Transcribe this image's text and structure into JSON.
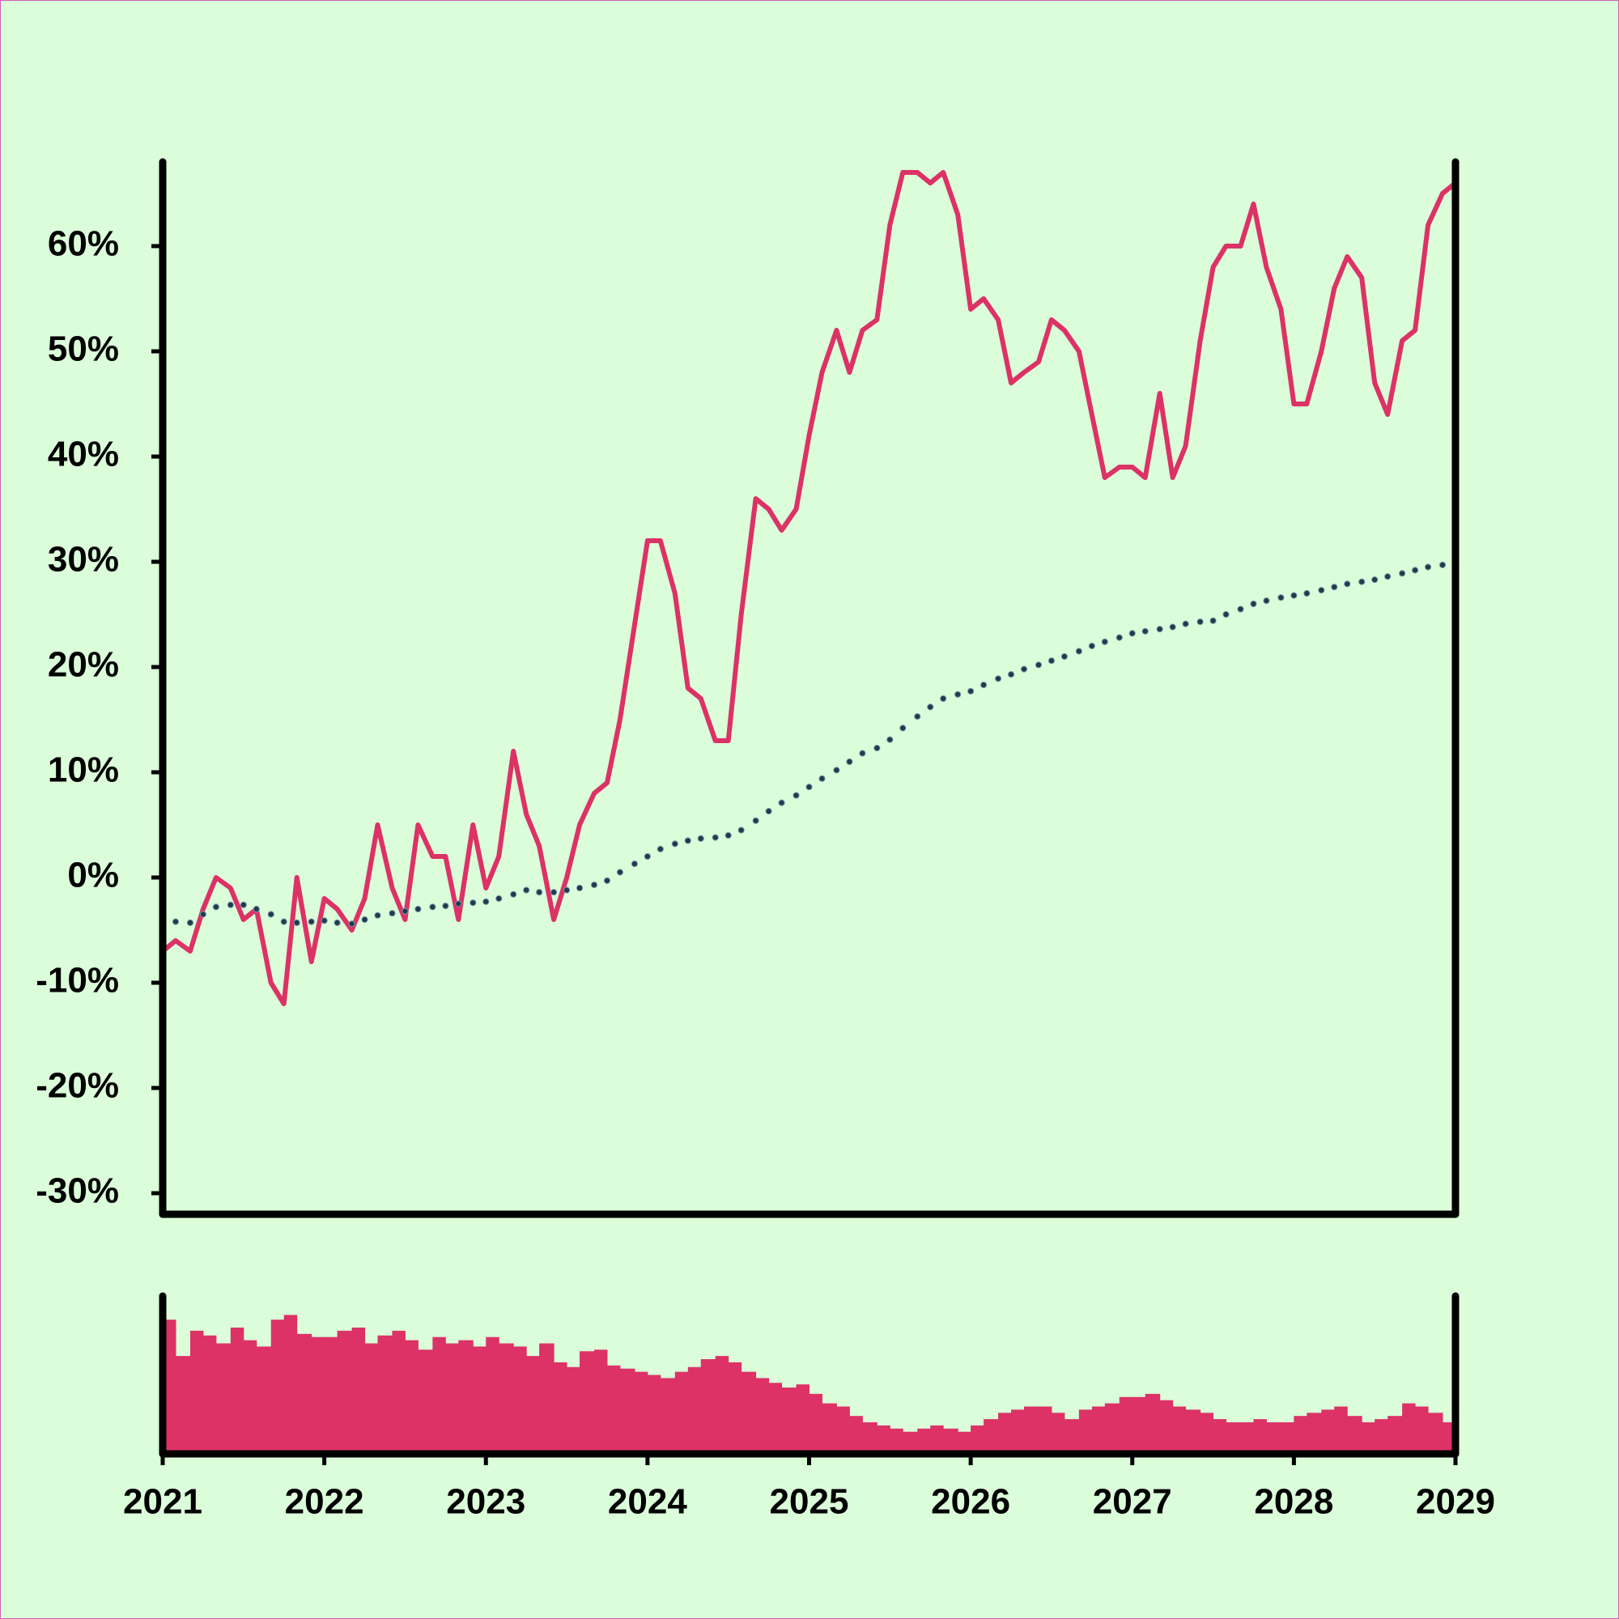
{
  "chart_data": {
    "type": "line",
    "xlim": [
      2021,
      2029
    ],
    "xticks": [
      2021,
      2022,
      2023,
      2024,
      2025,
      2026,
      2027,
      2028,
      2029
    ],
    "ylim": [
      -32,
      68
    ],
    "yticks": [
      {
        "value": -30,
        "label": "-30%"
      },
      {
        "value": -20,
        "label": "-20%"
      },
      {
        "value": -10,
        "label": "-10%"
      },
      {
        "value": 0,
        "label": "0%"
      },
      {
        "value": 10,
        "label": "10%"
      },
      {
        "value": 20,
        "label": "20%"
      },
      {
        "value": 30,
        "label": "30%"
      },
      {
        "value": 40,
        "label": "40%"
      },
      {
        "value": 50,
        "label": "50%"
      },
      {
        "value": 60,
        "label": "60%"
      }
    ],
    "x": [
      2021,
      2021.08,
      2021.17,
      2021.25,
      2021.33,
      2021.42,
      2021.5,
      2021.58,
      2021.67,
      2021.75,
      2021.83,
      2021.92,
      2022,
      2022.08,
      2022.17,
      2022.25,
      2022.33,
      2022.42,
      2022.5,
      2022.58,
      2022.67,
      2022.75,
      2022.83,
      2022.92,
      2023,
      2023.08,
      2023.17,
      2023.25,
      2023.33,
      2023.42,
      2023.5,
      2023.58,
      2023.67,
      2023.75,
      2023.83,
      2023.92,
      2024,
      2024.08,
      2024.17,
      2024.25,
      2024.33,
      2024.42,
      2024.5,
      2024.58,
      2024.67,
      2024.75,
      2024.83,
      2024.92,
      2025,
      2025.08,
      2025.17,
      2025.25,
      2025.33,
      2025.42,
      2025.5,
      2025.58,
      2025.67,
      2025.75,
      2025.83,
      2025.92,
      2026,
      2026.08,
      2026.17,
      2026.25,
      2026.33,
      2026.42,
      2026.5,
      2026.58,
      2026.67,
      2026.75,
      2026.83,
      2026.92,
      2027,
      2027.08,
      2027.17,
      2027.25,
      2027.33,
      2027.42,
      2027.5,
      2027.58,
      2027.67,
      2027.75,
      2027.83,
      2027.92,
      2028,
      2028.08,
      2028.17,
      2028.25,
      2028.33,
      2028.42,
      2028.5,
      2028.58,
      2028.67,
      2028.75,
      2028.83,
      2028.92,
      2029
    ],
    "series": [
      {
        "style": "line",
        "color": "#dc3266",
        "values": [
          -7,
          -6,
          -7,
          -3,
          0,
          -1,
          -4,
          -3,
          -10,
          -12,
          0,
          -8,
          -2,
          -3,
          -5,
          -2,
          5,
          -1,
          -4,
          5,
          2,
          2,
          -4,
          5,
          -1,
          2,
          12,
          6,
          3,
          -4,
          0,
          5,
          8,
          9,
          15,
          24,
          32,
          32,
          27,
          18,
          17,
          13,
          13,
          25,
          36,
          35,
          33,
          35,
          42,
          48,
          52,
          48,
          52,
          53,
          62,
          67,
          67,
          66,
          67,
          63,
          54,
          55,
          53,
          47,
          48,
          49,
          53,
          52,
          50,
          44,
          38,
          39,
          39,
          38,
          46,
          38,
          41,
          51,
          58,
          60,
          60,
          64,
          58,
          54,
          45,
          45,
          50,
          56,
          59,
          57,
          47,
          44,
          51,
          52,
          62,
          65,
          66
        ]
      },
      {
        "style": "dots",
        "color": "#1f3b4d",
        "values": [
          -1.8,
          -4.2,
          -4.3,
          -3.5,
          -2.8,
          -2.6,
          -2.6,
          -3,
          -3.5,
          -4.2,
          -4.3,
          -4.2,
          -4.1,
          -4.3,
          -4.4,
          -4,
          -3.6,
          -3.4,
          -3.2,
          -3,
          -2.8,
          -2.7,
          -2.5,
          -2.4,
          -2.3,
          -2,
          -1.6,
          -1.2,
          -1.4,
          -1.4,
          -1.2,
          -1,
          -0.7,
          -0.3,
          0.5,
          1.3,
          2,
          2.7,
          3.2,
          3.5,
          3.7,
          3.8,
          4,
          4.5,
          5.4,
          6.3,
          7.1,
          7.8,
          8.6,
          9.4,
          10.2,
          11,
          11.8,
          12.3,
          13.1,
          14.2,
          15.3,
          16.2,
          17,
          17.4,
          17.7,
          18.3,
          18.9,
          19.3,
          19.8,
          20.2,
          20.6,
          21,
          21.5,
          22,
          22.4,
          22.8,
          23.2,
          23.4,
          23.6,
          23.8,
          24.1,
          24.3,
          24.4,
          25,
          25.5,
          26,
          26.3,
          26.6,
          26.8,
          27,
          27.3,
          27.6,
          27.9,
          28.1,
          28.3,
          28.6,
          28.9,
          29.2,
          29.5,
          29.7,
          30
        ]
      }
    ],
    "volume": {
      "type": "bar",
      "color": "#dc3266",
      "ylim": [
        0,
        100
      ],
      "x": [
        2021,
        2021.08,
        2021.17,
        2021.25,
        2021.33,
        2021.42,
        2021.5,
        2021.58,
        2021.67,
        2021.75,
        2021.83,
        2021.92,
        2022,
        2022.08,
        2022.17,
        2022.25,
        2022.33,
        2022.42,
        2022.5,
        2022.58,
        2022.67,
        2022.75,
        2022.83,
        2022.92,
        2023,
        2023.08,
        2023.17,
        2023.25,
        2023.33,
        2023.42,
        2023.5,
        2023.58,
        2023.67,
        2023.75,
        2023.83,
        2023.92,
        2024,
        2024.08,
        2024.17,
        2024.25,
        2024.33,
        2024.42,
        2024.5,
        2024.58,
        2024.67,
        2024.75,
        2024.83,
        2024.92,
        2025,
        2025.08,
        2025.17,
        2025.25,
        2025.33,
        2025.42,
        2025.5,
        2025.58,
        2025.67,
        2025.75,
        2025.83,
        2025.92,
        2026,
        2026.08,
        2026.17,
        2026.25,
        2026.33,
        2026.42,
        2026.5,
        2026.58,
        2026.67,
        2026.75,
        2026.83,
        2026.92,
        2027,
        2027.08,
        2027.17,
        2027.25,
        2027.33,
        2027.42,
        2027.5,
        2027.58,
        2027.67,
        2027.75,
        2027.83,
        2027.92,
        2028,
        2028.08,
        2028.17,
        2028.25,
        2028.33,
        2028.42,
        2028.5,
        2028.58,
        2028.67,
        2028.75,
        2028.83,
        2028.92
      ],
      "values": [
        85,
        62,
        78,
        75,
        70,
        80,
        72,
        68,
        85,
        88,
        76,
        74,
        74,
        78,
        80,
        70,
        75,
        78,
        72,
        66,
        74,
        70,
        72,
        68,
        74,
        70,
        68,
        62,
        70,
        58,
        55,
        65,
        66,
        56,
        54,
        52,
        50,
        48,
        52,
        55,
        60,
        62,
        58,
        52,
        48,
        45,
        42,
        44,
        38,
        32,
        30,
        24,
        20,
        18,
        16,
        14,
        16,
        18,
        16,
        14,
        18,
        22,
        26,
        28,
        30,
        30,
        26,
        22,
        28,
        30,
        32,
        36,
        36,
        38,
        34,
        30,
        28,
        26,
        22,
        20,
        20,
        22,
        20,
        20,
        24,
        26,
        28,
        30,
        24,
        20,
        22,
        24,
        32,
        30,
        26,
        20
      ]
    }
  }
}
